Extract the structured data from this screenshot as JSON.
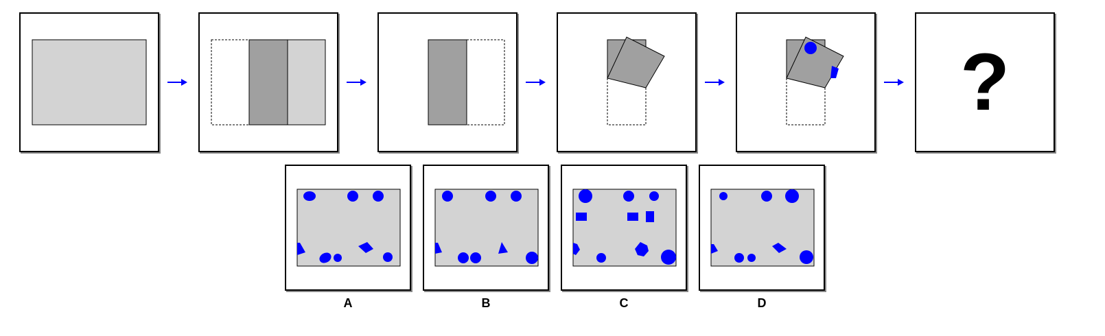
{
  "colors": {
    "paper": "#d3d3d3",
    "fold": "#a0a0a0",
    "hole": "#0000ff",
    "outline": "#000000"
  },
  "sequence": {
    "question_mark": "?"
  },
  "options": [
    {
      "label": "A"
    },
    {
      "label": "B"
    },
    {
      "label": "C"
    },
    {
      "label": "D"
    }
  ]
}
